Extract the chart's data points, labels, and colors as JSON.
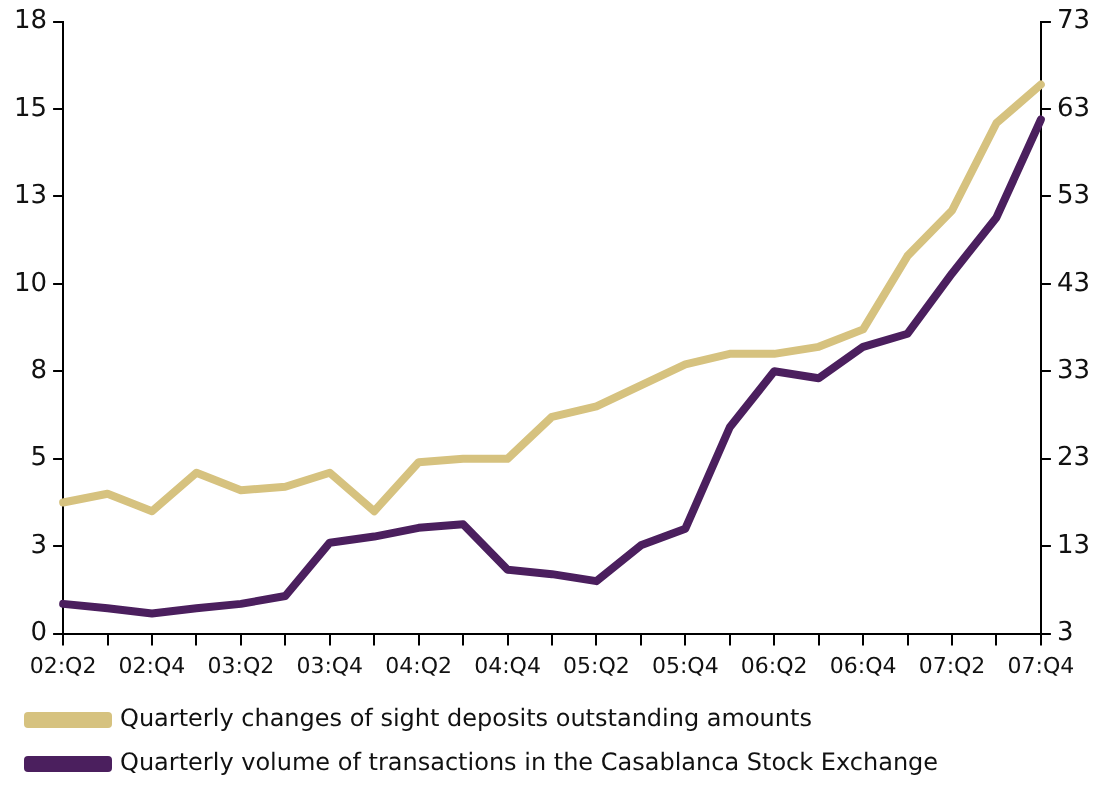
{
  "chart_data": {
    "type": "line",
    "categories": [
      "02:Q2",
      null,
      "02:Q4",
      null,
      "03:Q2",
      null,
      "03:Q4",
      null,
      "04:Q2",
      null,
      "04:Q4",
      null,
      "05:Q2",
      null,
      "05:Q4",
      null,
      "06:Q2",
      null,
      "06:Q4",
      null,
      "07:Q2",
      null,
      "07:Q4"
    ],
    "series": [
      {
        "name": "Quarterly changes of sight deposits outstanding amounts",
        "color": "#d6c27f",
        "values": [
          3.75,
          4.0,
          3.5,
          4.6,
          4.1,
          4.2,
          4.6,
          3.5,
          4.9,
          5.0,
          5.0,
          6.2,
          6.5,
          7.1,
          7.7,
          8.0,
          8.0,
          8.2,
          8.7,
          10.8,
          12.1,
          14.6,
          15.7
        ]
      },
      {
        "name": "Quarterly volume of transactions in the Casablanca Stock Exchange",
        "color": "#4b1f5e",
        "axis": "y2",
        "values": [
          6.4,
          5.9,
          5.3,
          5.9,
          6.4,
          7.3,
          13.4,
          14.1,
          15.1,
          15.5,
          10.3,
          9.8,
          9.0,
          13.1,
          15.0,
          26.6,
          33.0,
          32.2,
          35.8,
          37.3,
          44.2,
          50.6,
          61.8
        ]
      }
    ],
    "ylim": [
      0,
      17.5
    ],
    "yticks": [
      0,
      {
        "value": 2.5,
        "label": "3"
      },
      5,
      {
        "value": 7.5,
        "label": "8"
      },
      10,
      {
        "value": 12.5,
        "label": "13"
      },
      15,
      {
        "value": 17.5,
        "label": "18"
      }
    ],
    "y2lim": [
      3,
      73
    ],
    "y2ticks": [
      3,
      13,
      23,
      33,
      43,
      53,
      63,
      73
    ],
    "grid": false,
    "legend": "bottom",
    "marker": "none",
    "line_style": "solid"
  }
}
